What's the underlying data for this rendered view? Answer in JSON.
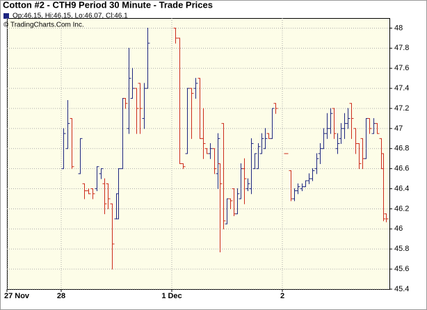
{
  "chart_data": {
    "type": "ohlc",
    "title": "Cotton #2 - CTH9 Period 30 Minute - Trade Prices",
    "legend_text": "Op:46.15, Hi:46.15, Lo:46.07, Cl:46.1",
    "copyright": "© TradingCharts.Com Inc.",
    "up_color": "#1c2580",
    "down_color": "#cc2a1a",
    "xlim": [
      0,
      551
    ],
    "xticks": [
      {
        "value": 0,
        "label": "27 Nov"
      },
      {
        "value": 78,
        "label": "28"
      },
      {
        "value": 237,
        "label": "1 Dec"
      },
      {
        "value": 396,
        "label": "2"
      }
    ],
    "ylim": [
      45.4,
      48.1
    ],
    "yticks": [
      45.4,
      45.6,
      45.8,
      46,
      46.2,
      46.4,
      46.6,
      46.8,
      47,
      47.2,
      47.4,
      47.6,
      47.8,
      48
    ],
    "grid": true,
    "x": [
      81,
      87,
      93,
      105,
      111,
      117,
      123,
      129,
      135,
      140,
      145,
      151,
      157,
      160,
      166,
      170,
      175,
      180,
      186,
      191,
      197,
      202,
      242,
      248,
      253,
      259,
      265,
      271,
      277,
      282,
      287,
      292,
      298,
      303,
      306,
      311,
      316,
      321,
      326,
      331,
      336,
      341,
      346,
      351,
      356,
      361,
      366,
      371,
      376,
      381,
      386,
      401,
      408,
      413,
      418,
      424,
      429,
      434,
      439,
      445,
      450,
      455,
      460,
      465,
      470,
      475,
      480,
      485,
      490,
      495,
      501,
      506,
      511,
      516,
      521,
      527,
      532,
      538,
      541,
      545
    ],
    "open": [
      46.6,
      46.8,
      47.1,
      46.55,
      46.45,
      46.38,
      46.4,
      46.4,
      46.55,
      46.45,
      46.45,
      46.25,
      46.1,
      46.1,
      46.6,
      47.3,
      47.0,
      47.3,
      47.4,
      47.45,
      47.1,
      47.4,
      48.0,
      47.9,
      46.65,
      46.75,
      47.4,
      47.4,
      47.5,
      46.9,
      46.8,
      46.75,
      46.8,
      46.55,
      46.65,
      47.05,
      46.05,
      46.3,
      46.4,
      46.15,
      46.3,
      46.6,
      46.4,
      46.4,
      46.6,
      46.6,
      46.75,
      46.8,
      46.95,
      46.9,
      47.25,
      46.75,
      46.58,
      46.3,
      46.38,
      46.4,
      46.42,
      46.48,
      46.5,
      46.6,
      46.75,
      46.8,
      46.95,
      47.0,
      47.2,
      46.8,
      46.9,
      47.0,
      47.05,
      47.25,
      47.0,
      46.85,
      46.9,
      46.7,
      47.1,
      46.95,
      47.05,
      46.9,
      46.75,
      46.15
    ],
    "high": [
      47.0,
      47.28,
      47.1,
      46.9,
      46.45,
      46.4,
      46.4,
      46.62,
      46.6,
      46.5,
      46.45,
      46.25,
      46.35,
      46.6,
      47.3,
      47.3,
      47.8,
      47.6,
      47.4,
      47.45,
      47.45,
      48.0,
      48.0,
      47.9,
      46.65,
      47.4,
      47.4,
      47.5,
      47.5,
      47.2,
      46.8,
      46.85,
      46.8,
      46.95,
      46.65,
      47.05,
      46.3,
      46.3,
      46.4,
      46.4,
      46.65,
      46.7,
      46.5,
      46.9,
      46.75,
      46.85,
      46.95,
      47.0,
      46.95,
      47.2,
      47.25,
      46.75,
      46.58,
      46.4,
      46.45,
      46.45,
      46.48,
      46.55,
      46.6,
      46.75,
      46.85,
      47.0,
      47.15,
      47.2,
      47.2,
      46.95,
      47.05,
      47.15,
      47.2,
      47.25,
      47.0,
      46.85,
      46.9,
      47.1,
      47.1,
      47.1,
      47.05,
      46.9,
      46.75,
      46.15
    ],
    "low": [
      46.6,
      46.8,
      46.6,
      46.55,
      46.3,
      46.35,
      46.3,
      46.38,
      46.5,
      46.15,
      46.2,
      45.6,
      46.1,
      46.1,
      46.6,
      47.2,
      46.95,
      47.3,
      46.95,
      46.95,
      47.0,
      47.4,
      47.85,
      46.65,
      46.6,
      46.75,
      46.9,
      47.3,
      46.9,
      46.7,
      46.75,
      46.7,
      46.55,
      46.4,
      45.77,
      46.0,
      46.05,
      46.2,
      46.13,
      46.15,
      46.3,
      46.25,
      46.38,
      46.35,
      46.6,
      46.6,
      46.75,
      46.8,
      46.9,
      46.9,
      47.15,
      46.75,
      46.28,
      46.28,
      46.35,
      46.38,
      46.42,
      46.45,
      46.48,
      46.55,
      46.65,
      46.8,
      46.9,
      46.95,
      46.9,
      46.75,
      46.85,
      46.9,
      47.0,
      46.9,
      46.75,
      46.6,
      46.6,
      46.7,
      46.95,
      46.95,
      46.95,
      46.6,
      46.08,
      46.07
    ],
    "close": [
      46.95,
      47.05,
      46.62,
      46.9,
      46.38,
      46.35,
      46.35,
      46.62,
      46.6,
      46.25,
      46.3,
      45.85,
      46.35,
      46.6,
      47.3,
      47.25,
      47.5,
      47.4,
      47.2,
      47.2,
      47.4,
      47.85,
      47.9,
      46.65,
      46.62,
      47.4,
      47.35,
      47.45,
      46.9,
      46.85,
      46.75,
      46.8,
      46.6,
      46.9,
      46.45,
      46.08,
      46.3,
      46.28,
      46.15,
      46.35,
      46.6,
      46.5,
      46.45,
      46.85,
      46.75,
      46.82,
      46.9,
      46.9,
      46.9,
      47.2,
      47.2,
      46.75,
      46.3,
      46.38,
      46.42,
      46.42,
      46.48,
      46.5,
      46.58,
      46.7,
      46.8,
      46.95,
      47.0,
      47.15,
      46.95,
      46.85,
      47.0,
      47.05,
      47.1,
      47.1,
      46.85,
      46.65,
      46.7,
      47.1,
      47.0,
      47.05,
      46.95,
      46.6,
      46.1,
      46.1
    ]
  }
}
